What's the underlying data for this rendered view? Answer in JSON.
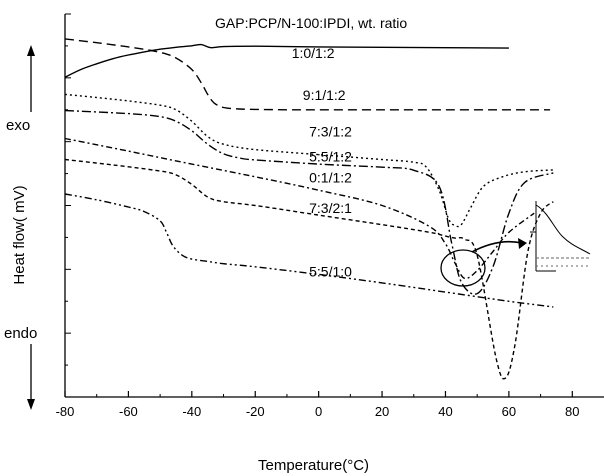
{
  "chart_data": {
    "type": "line",
    "title": "GAP:PCP/N-100:IPDI, wt. ratio",
    "xlabel": "Temperature(°C)",
    "ylabel": "Heat flow( mV)",
    "y_exo_label": "exo",
    "y_endo_label": "endo",
    "xlim": [
      -80,
      90
    ],
    "x_ticks": [
      -80,
      -60,
      -40,
      -20,
      0,
      20,
      40,
      60,
      80
    ],
    "ylim": [
      0,
      100
    ],
    "y_ticks_visible": false,
    "grid": false,
    "series": [
      {
        "name": "1:0/1:2",
        "dash": "solid",
        "x": [
          -80,
          -75,
          -70,
          -65,
          -60,
          -55,
          -50,
          -45,
          -40,
          -37,
          -34,
          -30,
          -20,
          -10,
          0,
          20,
          40,
          60
        ],
        "y": [
          83.5,
          85.5,
          87,
          88.3,
          89.3,
          90.1,
          90.8,
          91.3,
          91.7,
          92,
          91.2,
          91.5,
          91.6,
          91.5,
          91.4,
          91.3,
          91.2,
          91.1
        ]
      },
      {
        "name": "9:1/1:2",
        "dash": "dash",
        "x": [
          -80,
          -70,
          -60,
          -50,
          -45,
          -40,
          -37,
          -35,
          -33,
          -30,
          -25,
          -20,
          -10,
          0,
          20,
          40,
          60,
          73
        ],
        "y": [
          93.5,
          92.5,
          91.4,
          90,
          88.5,
          85.5,
          82,
          79,
          76.8,
          75.6,
          75.2,
          75.1,
          75,
          75,
          75,
          75,
          75,
          75
        ]
      },
      {
        "name": "7:3/1:2",
        "dash": "dot",
        "x": [
          -80,
          -70,
          -60,
          -50,
          -45,
          -40,
          -35,
          -30,
          -20,
          0,
          20,
          30,
          34,
          38,
          41,
          43,
          45,
          48,
          52,
          58,
          65,
          74
        ],
        "y": [
          79,
          78.2,
          77.3,
          76.2,
          75,
          72,
          68,
          66,
          64.6,
          63.3,
          62,
          61.3,
          60,
          54,
          46.5,
          44.8,
          45,
          49.5,
          55,
          57.5,
          58.8,
          59.3
        ]
      },
      {
        "name": "5:5/1:2",
        "dash": "dashdot",
        "x": [
          -80,
          -60,
          -50,
          -45,
          -40,
          -35,
          -30,
          -25,
          -20,
          0,
          20,
          30,
          38,
          42,
          45,
          50,
          55,
          60,
          65,
          74
        ],
        "y": [
          74.8,
          74,
          73.2,
          72,
          69.5,
          66,
          63.5,
          62.4,
          61.9,
          60.8,
          60,
          59.2,
          55,
          40,
          30,
          27,
          34,
          48,
          56,
          58.5
        ]
      },
      {
        "name": "0:1/1:2",
        "dash": "dashdot2",
        "x": [
          -80,
          -60,
          -40,
          -20,
          0,
          20,
          35,
          40,
          43,
          46,
          50,
          55,
          60,
          68
        ],
        "y": [
          67.5,
          64.2,
          60.8,
          57.5,
          54,
          50,
          44.5,
          40,
          35,
          31,
          33,
          38,
          43,
          48
        ]
      },
      {
        "name": "7:3/2:1",
        "dash": "shortdash",
        "x": [
          -80,
          -65,
          -50,
          -45,
          -40,
          -35,
          -30,
          -20,
          0,
          20,
          35,
          40,
          43,
          46,
          50,
          56,
          59,
          62,
          66,
          70,
          74
        ],
        "y": [
          62,
          60.6,
          59,
          58,
          55.5,
          52.2,
          51,
          50,
          47.5,
          45,
          43,
          42,
          41.5,
          41.2,
          37,
          10,
          5,
          14,
          38,
          48,
          51
        ]
      },
      {
        "name": "5:5/1:0",
        "dash": "dashdotdot",
        "x": [
          -80,
          -70,
          -60,
          -55,
          -50,
          -48,
          -46,
          -43,
          -40,
          -35,
          -30,
          -20,
          0,
          20,
          40,
          60,
          74
        ],
        "y": [
          53,
          51.5,
          49.6,
          48.4,
          46,
          43,
          39.5,
          37,
          36,
          35.4,
          34.8,
          34,
          32,
          29.8,
          27.4,
          25,
          23.5
        ]
      }
    ],
    "inset_annotation": "zoom-circle-with-arrow-to-inset"
  }
}
